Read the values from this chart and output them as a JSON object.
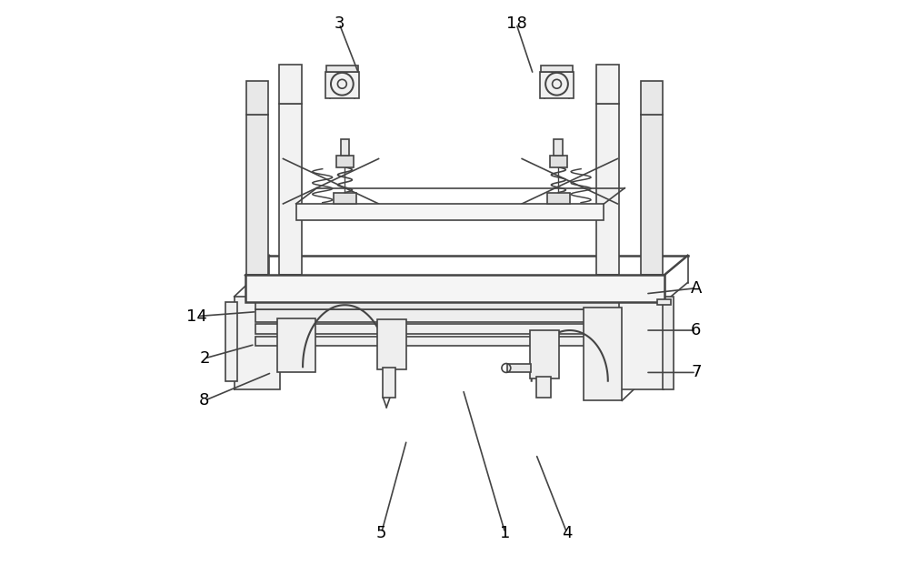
{
  "bg_color": "#ffffff",
  "lc": "#444444",
  "lw": 1.2,
  "tlw": 1.8,
  "fs": 13,
  "annotations": {
    "5": {
      "tp": [
        0.37,
        0.055
      ],
      "le": [
        0.415,
        0.22
      ]
    },
    "1": {
      "tp": [
        0.59,
        0.055
      ],
      "le": [
        0.515,
        0.31
      ]
    },
    "4": {
      "tp": [
        0.7,
        0.055
      ],
      "le": [
        0.645,
        0.195
      ]
    },
    "8": {
      "tp": [
        0.055,
        0.29
      ],
      "le": [
        0.175,
        0.34
      ]
    },
    "2": {
      "tp": [
        0.055,
        0.365
      ],
      "le": [
        0.145,
        0.39
      ]
    },
    "14": {
      "tp": [
        0.042,
        0.44
      ],
      "le": [
        0.148,
        0.448
      ]
    },
    "7": {
      "tp": [
        0.93,
        0.34
      ],
      "le": [
        0.84,
        0.34
      ]
    },
    "6": {
      "tp": [
        0.93,
        0.415
      ],
      "le": [
        0.84,
        0.415
      ]
    },
    "A": {
      "tp": [
        0.93,
        0.49
      ],
      "le": [
        0.84,
        0.48
      ]
    },
    "3": {
      "tp": [
        0.295,
        0.96
      ],
      "le": [
        0.33,
        0.87
      ]
    },
    "18": {
      "tp": [
        0.61,
        0.96
      ],
      "le": [
        0.64,
        0.87
      ]
    }
  }
}
